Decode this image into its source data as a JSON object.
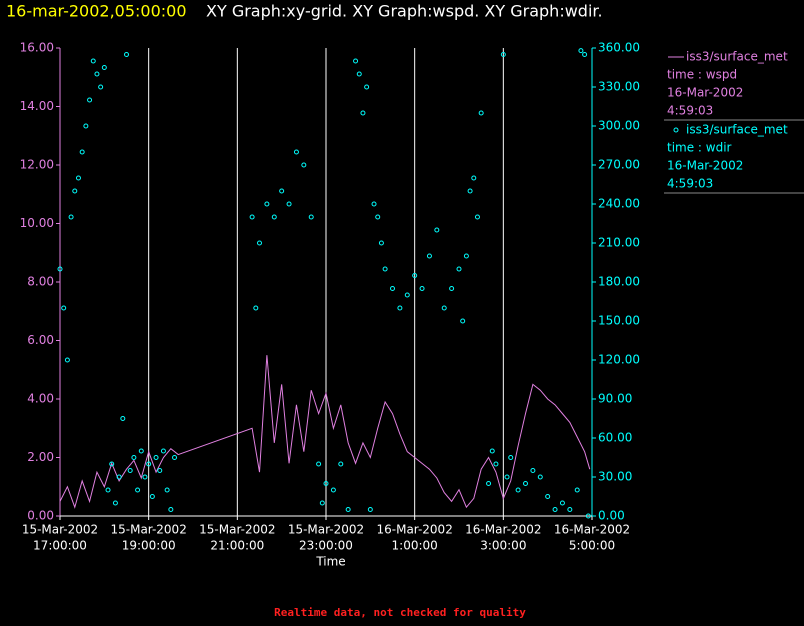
{
  "chart_data": {
    "type": "xy",
    "timestamp": "16-mar-2002,05:00:00",
    "title": "XY Graph:xy-grid.  XY Graph:wspd.  XY Graph:wdir.",
    "x_label": "Time",
    "footer": "Realtime data, not checked for quality",
    "grid": true,
    "xlim": [
      "2002-03-15T17:00:00",
      "2002-03-16T05:00:00"
    ],
    "xticks": [
      {
        "value": "2002-03-15T17:00:00",
        "label": [
          "15-Mar-2002",
          "17:00:00"
        ]
      },
      {
        "value": "2002-03-15T19:00:00",
        "label": [
          "15-Mar-2002",
          "19:00:00"
        ]
      },
      {
        "value": "2002-03-15T21:00:00",
        "label": [
          "15-Mar-2002",
          "21:00:00"
        ]
      },
      {
        "value": "2002-03-15T23:00:00",
        "label": [
          "15-Mar-2002",
          "23:00:00"
        ]
      },
      {
        "value": "2002-03-16T01:00:00",
        "label": [
          "16-Mar-2002",
          "1:00:00"
        ]
      },
      {
        "value": "2002-03-16T03:00:00",
        "label": [
          "16-Mar-2002",
          "3:00:00"
        ]
      },
      {
        "value": "2002-03-16T05:00:00",
        "label": [
          "16-Mar-2002",
          "5:00:00"
        ]
      }
    ],
    "ylim": [
      0,
      16
    ],
    "yticks": [
      {
        "value": 0,
        "label": "0.00"
      },
      {
        "value": 2,
        "label": "2.00"
      },
      {
        "value": 4,
        "label": "4.00"
      },
      {
        "value": 6,
        "label": "6.00"
      },
      {
        "value": 8,
        "label": "8.00"
      },
      {
        "value": 10,
        "label": "10.00"
      },
      {
        "value": 12,
        "label": "12.00"
      },
      {
        "value": 14,
        "label": "14.00"
      },
      {
        "value": 16,
        "label": "16.00"
      }
    ],
    "y2lim": [
      0,
      360
    ],
    "y2ticks": [
      {
        "value": 0,
        "label": "0.00"
      },
      {
        "value": 30,
        "label": "30.00"
      },
      {
        "value": 60,
        "label": "60.00"
      },
      {
        "value": 90,
        "label": "90.00"
      },
      {
        "value": 120,
        "label": "120.00"
      },
      {
        "value": 150,
        "label": "150.00"
      },
      {
        "value": 180,
        "label": "180.00"
      },
      {
        "value": 210,
        "label": "210.00"
      },
      {
        "value": 240,
        "label": "240.00"
      },
      {
        "value": 270,
        "label": "270.00"
      },
      {
        "value": 300,
        "label": "300.00"
      },
      {
        "value": 330,
        "label": "330.00"
      },
      {
        "value": 360,
        "label": "360.00"
      }
    ],
    "series": [
      {
        "name": "iss3/surface_met",
        "kind": "line",
        "color": "#e080e0",
        "axis": "y",
        "legend_lines": [
          "time : wspd",
          "16-Mar-2002",
          "4:59:03"
        ],
        "x": [
          "2002-03-15T17:00:00",
          "2002-03-15T17:10:00",
          "2002-03-15T17:20:00",
          "2002-03-15T17:30:00",
          "2002-03-15T17:40:00",
          "2002-03-15T17:50:00",
          "2002-03-15T18:00:00",
          "2002-03-15T18:10:00",
          "2002-03-15T18:20:00",
          "2002-03-15T18:30:00",
          "2002-03-15T18:40:00",
          "2002-03-15T18:50:00",
          "2002-03-15T19:00:00",
          "2002-03-15T19:10:00",
          "2002-03-15T19:20:00",
          "2002-03-15T19:30:00",
          "2002-03-15T19:40:00",
          "2002-03-15T21:20:00",
          "2002-03-15T21:30:00",
          "2002-03-15T21:40:00",
          "2002-03-15T21:50:00",
          "2002-03-15T22:00:00",
          "2002-03-15T22:10:00",
          "2002-03-15T22:20:00",
          "2002-03-15T22:30:00",
          "2002-03-15T22:40:00",
          "2002-03-15T22:50:00",
          "2002-03-15T23:00:00",
          "2002-03-15T23:10:00",
          "2002-03-15T23:20:00",
          "2002-03-15T23:30:00",
          "2002-03-15T23:40:00",
          "2002-03-15T23:50:00",
          "2002-03-16T00:00:00",
          "2002-03-16T00:10:00",
          "2002-03-16T00:20:00",
          "2002-03-16T00:30:00",
          "2002-03-16T00:40:00",
          "2002-03-16T00:50:00",
          "2002-03-16T01:00:00",
          "2002-03-16T01:10:00",
          "2002-03-16T01:20:00",
          "2002-03-16T01:30:00",
          "2002-03-16T01:40:00",
          "2002-03-16T01:50:00",
          "2002-03-16T02:00:00",
          "2002-03-16T02:10:00",
          "2002-03-16T02:20:00",
          "2002-03-16T02:30:00",
          "2002-03-16T02:40:00",
          "2002-03-16T02:50:00",
          "2002-03-16T03:00:00",
          "2002-03-16T03:10:00",
          "2002-03-16T03:20:00",
          "2002-03-16T03:30:00",
          "2002-03-16T03:40:00",
          "2002-03-16T03:50:00",
          "2002-03-16T04:00:00",
          "2002-03-16T04:10:00",
          "2002-03-16T04:20:00",
          "2002-03-16T04:30:00",
          "2002-03-16T04:40:00",
          "2002-03-16T04:50:00",
          "2002-03-16T04:57:00"
        ],
        "values": [
          0.5,
          1.0,
          0.3,
          1.2,
          0.5,
          1.5,
          1.0,
          1.8,
          1.2,
          1.6,
          1.9,
          1.3,
          2.2,
          1.5,
          2.0,
          2.3,
          2.1,
          3.0,
          1.5,
          5.5,
          2.5,
          4.5,
          1.8,
          3.8,
          2.2,
          4.3,
          3.5,
          4.2,
          3.0,
          3.8,
          2.5,
          1.8,
          2.5,
          2.0,
          3.0,
          3.9,
          3.5,
          2.8,
          2.2,
          2.0,
          1.8,
          1.6,
          1.3,
          0.8,
          0.5,
          0.9,
          0.3,
          0.6,
          1.6,
          2.0,
          1.5,
          0.6,
          1.2,
          2.4,
          3.5,
          4.5,
          4.3,
          4.0,
          3.8,
          3.5,
          3.2,
          2.7,
          2.2,
          1.6
        ]
      },
      {
        "name": "iss3/surface_met",
        "kind": "scatter",
        "color": "#00ffff",
        "axis": "y2",
        "legend_lines": [
          "time : wdir",
          "16-Mar-2002",
          "4:59:03"
        ],
        "x": [
          "2002-03-15T17:00:00",
          "2002-03-15T17:05:00",
          "2002-03-15T17:10:00",
          "2002-03-15T17:15:00",
          "2002-03-15T17:20:00",
          "2002-03-15T17:25:00",
          "2002-03-15T17:30:00",
          "2002-03-15T17:35:00",
          "2002-03-15T17:40:00",
          "2002-03-15T17:45:00",
          "2002-03-15T17:50:00",
          "2002-03-15T17:55:00",
          "2002-03-15T18:00:00",
          "2002-03-15T18:05:00",
          "2002-03-15T18:10:00",
          "2002-03-15T18:15:00",
          "2002-03-15T18:20:00",
          "2002-03-15T18:25:00",
          "2002-03-15T18:30:00",
          "2002-03-15T18:35:00",
          "2002-03-15T18:40:00",
          "2002-03-15T18:45:00",
          "2002-03-15T18:50:00",
          "2002-03-15T18:55:00",
          "2002-03-15T19:00:00",
          "2002-03-15T19:05:00",
          "2002-03-15T19:10:00",
          "2002-03-15T19:15:00",
          "2002-03-15T19:20:00",
          "2002-03-15T19:25:00",
          "2002-03-15T19:30:00",
          "2002-03-15T19:35:00",
          "2002-03-15T21:20:00",
          "2002-03-15T21:25:00",
          "2002-03-15T21:30:00",
          "2002-03-15T21:40:00",
          "2002-03-15T21:50:00",
          "2002-03-15T22:00:00",
          "2002-03-15T22:10:00",
          "2002-03-15T22:20:00",
          "2002-03-15T22:30:00",
          "2002-03-15T22:40:00",
          "2002-03-15T22:50:00",
          "2002-03-15T22:55:00",
          "2002-03-15T23:00:00",
          "2002-03-15T23:10:00",
          "2002-03-15T23:20:00",
          "2002-03-15T23:30:00",
          "2002-03-15T23:40:00",
          "2002-03-15T23:45:00",
          "2002-03-15T23:50:00",
          "2002-03-15T23:55:00",
          "2002-03-16T00:00:00",
          "2002-03-16T00:05:00",
          "2002-03-16T00:10:00",
          "2002-03-16T00:15:00",
          "2002-03-16T00:20:00",
          "2002-03-16T00:30:00",
          "2002-03-16T00:40:00",
          "2002-03-16T00:50:00",
          "2002-03-16T01:00:00",
          "2002-03-16T01:10:00",
          "2002-03-16T01:20:00",
          "2002-03-16T01:30:00",
          "2002-03-16T01:40:00",
          "2002-03-16T01:50:00",
          "2002-03-16T02:00:00",
          "2002-03-16T02:05:00",
          "2002-03-16T02:10:00",
          "2002-03-16T02:15:00",
          "2002-03-16T02:20:00",
          "2002-03-16T02:25:00",
          "2002-03-16T02:30:00",
          "2002-03-16T02:40:00",
          "2002-03-16T02:45:00",
          "2002-03-16T02:50:00",
          "2002-03-16T03:00:00",
          "2002-03-16T03:05:00",
          "2002-03-16T03:10:00",
          "2002-03-16T03:20:00",
          "2002-03-16T03:30:00",
          "2002-03-16T03:40:00",
          "2002-03-16T03:50:00",
          "2002-03-16T04:00:00",
          "2002-03-16T04:10:00",
          "2002-03-16T04:20:00",
          "2002-03-16T04:30:00",
          "2002-03-16T04:40:00",
          "2002-03-16T04:45:00",
          "2002-03-16T04:50:00",
          "2002-03-16T04:55:00"
        ],
        "values": [
          190,
          160,
          120,
          230,
          250,
          260,
          280,
          300,
          320,
          350,
          340,
          330,
          345,
          20,
          40,
          10,
          30,
          75,
          355,
          35,
          45,
          20,
          50,
          30,
          40,
          15,
          45,
          35,
          50,
          20,
          5,
          45,
          230,
          160,
          210,
          240,
          230,
          250,
          240,
          280,
          270,
          230,
          40,
          10,
          25,
          20,
          40,
          5,
          350,
          340,
          310,
          330,
          5,
          240,
          230,
          210,
          190,
          175,
          160,
          170,
          185,
          175,
          200,
          220,
          160,
          175,
          190,
          150,
          200,
          250,
          260,
          230,
          310,
          25,
          50,
          40,
          355,
          30,
          45,
          20,
          25,
          35,
          30,
          15,
          5,
          10,
          5,
          20,
          358,
          355,
          0
        ]
      }
    ]
  }
}
